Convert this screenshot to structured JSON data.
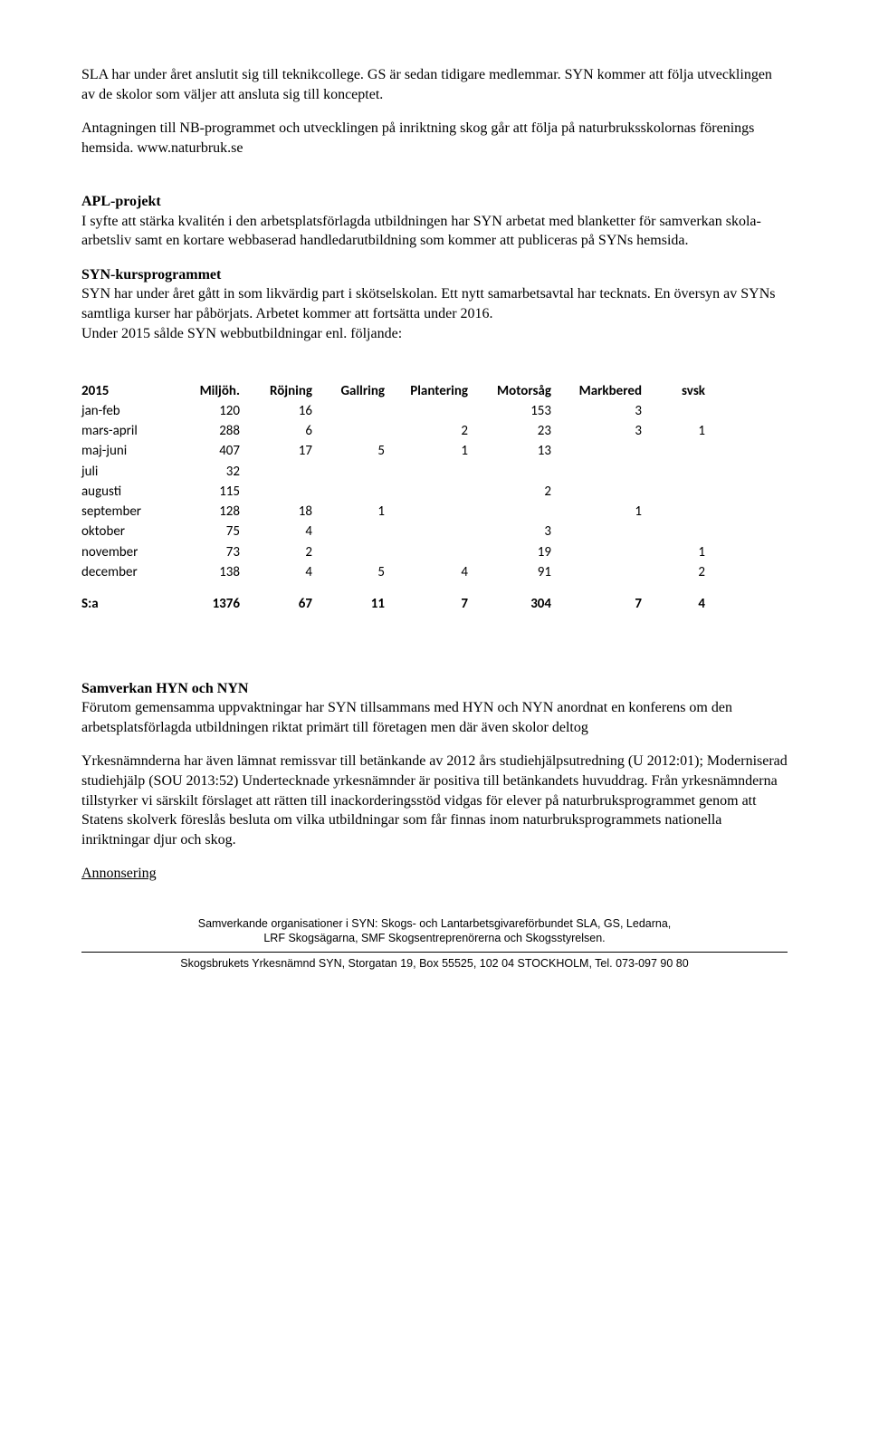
{
  "intro": {
    "p1": "SLA har under året anslutit sig till teknikcollege. GS är sedan tidigare medlemmar. SYN kommer att följa utvecklingen av de skolor som väljer att ansluta sig till konceptet.",
    "p2_a": "Antagningen till NB-programmet och utvecklingen på inriktning skog går att följa på naturbruksskolornas förenings hemsida. ",
    "p2_link": "www.naturbruk.se"
  },
  "apl": {
    "heading": "APL-projekt",
    "body": "I syfte att stärka kvalitén i den arbetsplatsförlagda utbildningen har SYN arbetat med blanketter för samverkan skola-arbetsliv samt en kortare webbaserad handledarutbildning som kommer att publiceras på SYNs hemsida."
  },
  "kurs": {
    "heading": "SYN-kursprogrammet",
    "body": "SYN har under året gått in som likvärdig part i skötselskolan. Ett nytt samarbetsavtal har tecknats.  En översyn av SYNs samtliga kurser har påbörjats. Arbetet kommer att fortsätta under 2016.",
    "body2": "Under 2015 sålde SYN webbutbildningar enl. följande:"
  },
  "table": {
    "headers": [
      "2015",
      "Miljöh.",
      "Röjning",
      "Gallring",
      "Plantering",
      "Motorsåg",
      "Markbered",
      "svsk"
    ],
    "rows": [
      {
        "label": "jan-feb",
        "c": [
          "120",
          "16",
          "",
          "",
          "153",
          "3",
          ""
        ]
      },
      {
        "label": "mars-april",
        "c": [
          "288",
          "6",
          "",
          "2",
          "23",
          "3",
          "1"
        ]
      },
      {
        "label": "maj-juni",
        "c": [
          "407",
          "17",
          "5",
          "1",
          "13",
          "",
          ""
        ]
      },
      {
        "label": "juli",
        "c": [
          "32",
          "",
          "",
          "",
          "",
          "",
          ""
        ]
      },
      {
        "label": "augusti",
        "c": [
          "115",
          "",
          "",
          "",
          "2",
          "",
          ""
        ]
      },
      {
        "label": "september",
        "c": [
          "128",
          "18",
          "1",
          "",
          "",
          "1",
          ""
        ]
      },
      {
        "label": "oktober",
        "c": [
          "75",
          "4",
          "",
          "",
          "3",
          "",
          ""
        ]
      },
      {
        "label": "november",
        "c": [
          "73",
          "2",
          "",
          "",
          "19",
          "",
          "1"
        ]
      },
      {
        "label": "december",
        "c": [
          "138",
          "4",
          "5",
          "4",
          "91",
          "",
          "2"
        ]
      }
    ],
    "totals": {
      "label": "S:a",
      "c": [
        "1376",
        "67",
        "11",
        "7",
        "304",
        "7",
        "4"
      ]
    }
  },
  "samverkan": {
    "heading": "Samverkan HYN och NYN",
    "p1": "Förutom gemensamma uppvaktningar har SYN tillsammans med HYN och NYN anordnat en konferens om den arbetsplatsförlagda utbildningen riktat primärt till företagen men där även skolor deltog",
    "p2": "Yrkesnämnderna har även lämnat remissvar till betänkande av 2012 års studiehjälpsutredning (U 2012:01); Moderniserad studiehjälp (SOU 2013:52) Undertecknade yrkesnämnder är positiva till betänkandets huvuddrag. Från yrkesnämnderna tillstyrker vi särskilt förslaget att rätten till inackorderingsstöd vidgas för elever på naturbruksprogrammet genom att Statens skolverk föreslås besluta om vilka utbildningar som får finnas inom naturbruksprogrammets nationella inriktningar djur och skog."
  },
  "annonsering": {
    "heading": "Annonsering"
  },
  "footer": {
    "line1": "Samverkande organisationer i SYN: Skogs- och Lantarbetsgivareförbundet SLA, GS, Ledarna,",
    "line2": "LRF Skogsägarna, SMF Skogsentreprenörerna och Skogsstyrelsen.",
    "line3": "Skogsbrukets Yrkesnämnd SYN, Storgatan 19, Box 55525, 102 04 STOCKHOLM, Tel. 073-097 90 80"
  },
  "col_widths": [
    "105",
    "80",
    "80",
    "80",
    "92",
    "92",
    "100",
    "70"
  ]
}
